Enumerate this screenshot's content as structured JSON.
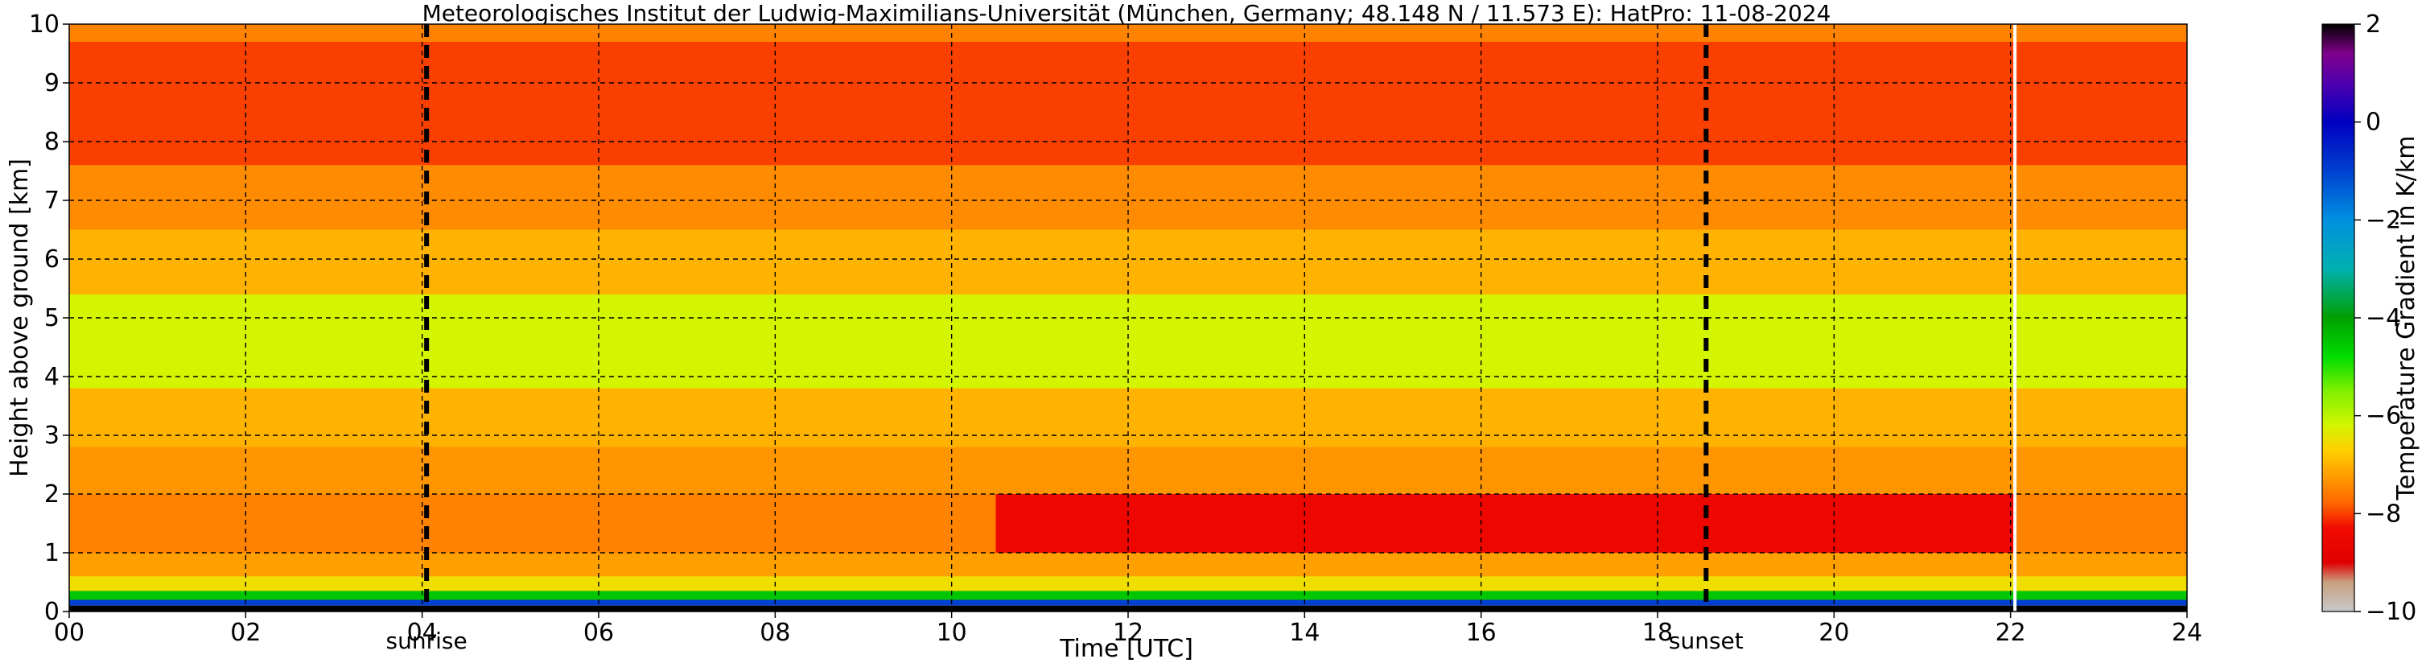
{
  "chart_data": {
    "type": "heatmap",
    "title": "Meteorologisches Institut der Ludwig-Maximilians-Universität (München, Germany; 48.148 N / 11.573 E):    HatPro: 11-08-2024",
    "xlabel": "Time [UTC]",
    "ylabel": "Height above ground [km]",
    "xlim": [
      0,
      24
    ],
    "ylim": [
      0,
      10
    ],
    "x_ticks": [
      "00",
      "02",
      "04",
      "06",
      "08",
      "10",
      "12",
      "14",
      "16",
      "18",
      "20",
      "22",
      "24"
    ],
    "y_ticks": [
      "0",
      "1",
      "2",
      "3",
      "4",
      "5",
      "6",
      "7",
      "8",
      "9",
      "10"
    ],
    "grid": true,
    "colorbar": {
      "label": "Temperature Gradient in K/km",
      "range": [
        -10,
        2
      ],
      "ticks": [
        "2",
        "0",
        "−2",
        "−4",
        "−6",
        "−8",
        "−10"
      ]
    },
    "markers": [
      {
        "label": "sunrise",
        "x": 4.05
      },
      {
        "label": "sunset",
        "x": 18.55
      }
    ],
    "data_end_x": 22.05,
    "height_layers_km": [
      {
        "from": 0.0,
        "to": 0.1,
        "value": 2.0
      },
      {
        "from": 0.1,
        "to": 0.2,
        "value": -1.0
      },
      {
        "from": 0.2,
        "to": 0.35,
        "value": -4.5
      },
      {
        "from": 0.35,
        "to": 0.6,
        "value": -6.5
      },
      {
        "from": 0.6,
        "to": 1.0,
        "value": -7.2
      },
      {
        "from": 1.0,
        "to": 2.0,
        "value": -7.5
      },
      {
        "from": 2.0,
        "to": 2.8,
        "value": -7.3
      },
      {
        "from": 2.8,
        "to": 3.8,
        "value": -7.0
      },
      {
        "from": 3.8,
        "to": 5.4,
        "value": -6.2
      },
      {
        "from": 5.4,
        "to": 6.5,
        "value": -7.0
      },
      {
        "from": 6.5,
        "to": 7.6,
        "value": -7.4
      },
      {
        "from": 7.6,
        "to": 9.7,
        "value": -8.0
      },
      {
        "from": 9.7,
        "to": 10.0,
        "value": -7.5
      }
    ],
    "afternoon_inversion": {
      "x_from": 10.5,
      "x_to": 22.05,
      "y_from": 1.0,
      "y_to": 2.0,
      "value": -8.5
    }
  }
}
